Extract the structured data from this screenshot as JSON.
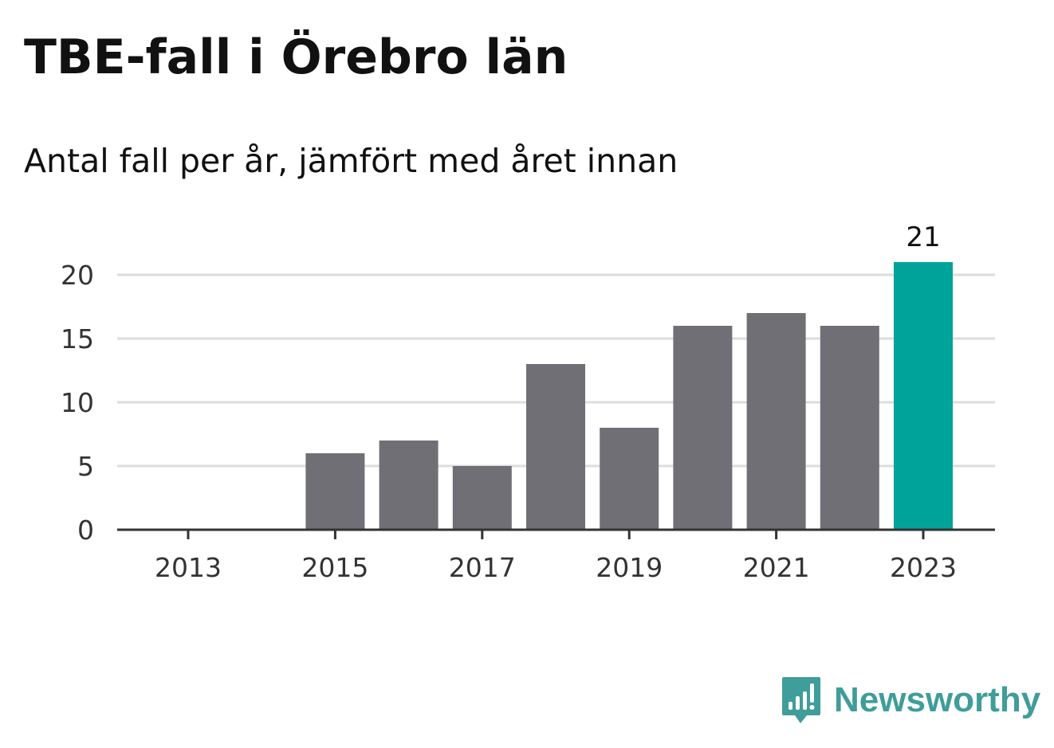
{
  "header": {
    "title": "TBE-fall i Örebro län",
    "subtitle": "Antal fall per år, jämfört med året innan"
  },
  "brand": {
    "name": "Newsworthy",
    "logo_icon": "newsworthy-logo-icon",
    "color": "#3f9d9a"
  },
  "colors": {
    "bar": "#706f75",
    "highlight": "#00a39a",
    "grid": "#dddddd",
    "axis": "#333333"
  },
  "chart_data": {
    "type": "bar",
    "categories": [
      "2013",
      "2014",
      "2015",
      "2016",
      "2017",
      "2018",
      "2019",
      "2020",
      "2021",
      "2022",
      "2023"
    ],
    "values": [
      0,
      0,
      6,
      7,
      5,
      13,
      8,
      16,
      17,
      16,
      21
    ],
    "highlight_index": 10,
    "data_labels": [
      {
        "category": "2023",
        "text": "21"
      }
    ],
    "x_tick_labels": [
      "2013",
      "2015",
      "2017",
      "2019",
      "2021",
      "2023"
    ],
    "y_ticks": [
      0,
      5,
      10,
      15,
      20
    ],
    "ylim": [
      0,
      21
    ],
    "grid": true,
    "legend": "none",
    "title": "TBE-fall i Örebro län",
    "subtitle": "Antal fall per år, jämfört med året innan",
    "xlabel": "",
    "ylabel": ""
  }
}
